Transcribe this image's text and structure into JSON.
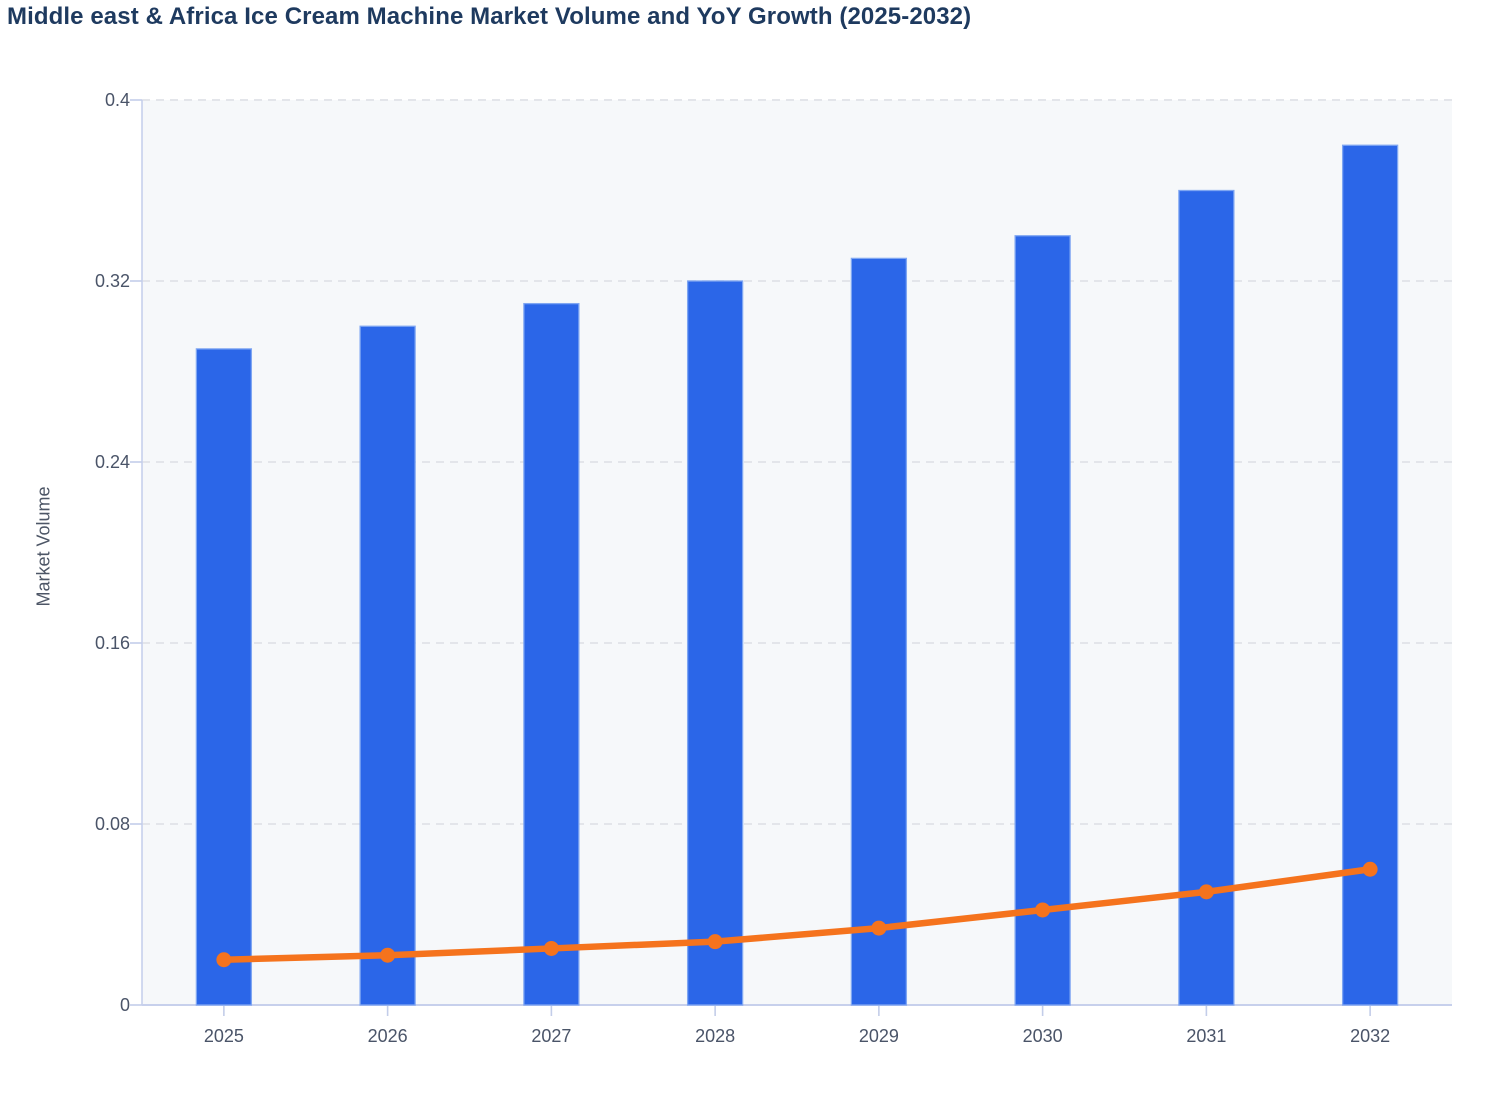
{
  "chart_data": {
    "type": "bar+line",
    "title": "Middle east & Africa Ice Cream Machine Market Volume and YoY Growth (2025-2032)",
    "ylabel": "Market Volume",
    "xlabel": "",
    "ylim": [
      0,
      0.4
    ],
    "categories": [
      "2025",
      "2026",
      "2027",
      "2028",
      "2029",
      "2030",
      "2031",
      "2032"
    ],
    "series": [
      {
        "name": "Market Volume",
        "type": "bar",
        "color": "#2b66e8",
        "values": [
          0.29,
          0.3,
          0.31,
          0.32,
          0.33,
          0.34,
          0.36,
          0.38
        ]
      },
      {
        "name": "YoY Growth",
        "type": "line",
        "color": "#f5731d",
        "values": [
          0.02,
          0.022,
          0.025,
          0.028,
          0.034,
          0.042,
          0.05,
          0.06
        ]
      }
    ],
    "y_ticks": {
      "values": [
        0,
        0.08,
        0.16,
        0.24,
        0.32,
        0.4
      ],
      "labels": [
        "0",
        "0.08",
        "0.16",
        "0.24",
        "0.32",
        "0.4"
      ]
    },
    "grid": "horizontal-dashed",
    "legend_position": "none",
    "colors": {
      "bar_fill": "#2b66e8",
      "bar_border": "#7fa6f2",
      "line": "#f5731d",
      "marker": "#f5731d",
      "axis_line": "#c7d0ec",
      "gridline": "#e3e5ea",
      "tick_stub": "#c3cde9",
      "tick_label": "#4a5468",
      "title": "#1e3a5f",
      "plot_background": "#f6f8fa"
    }
  }
}
